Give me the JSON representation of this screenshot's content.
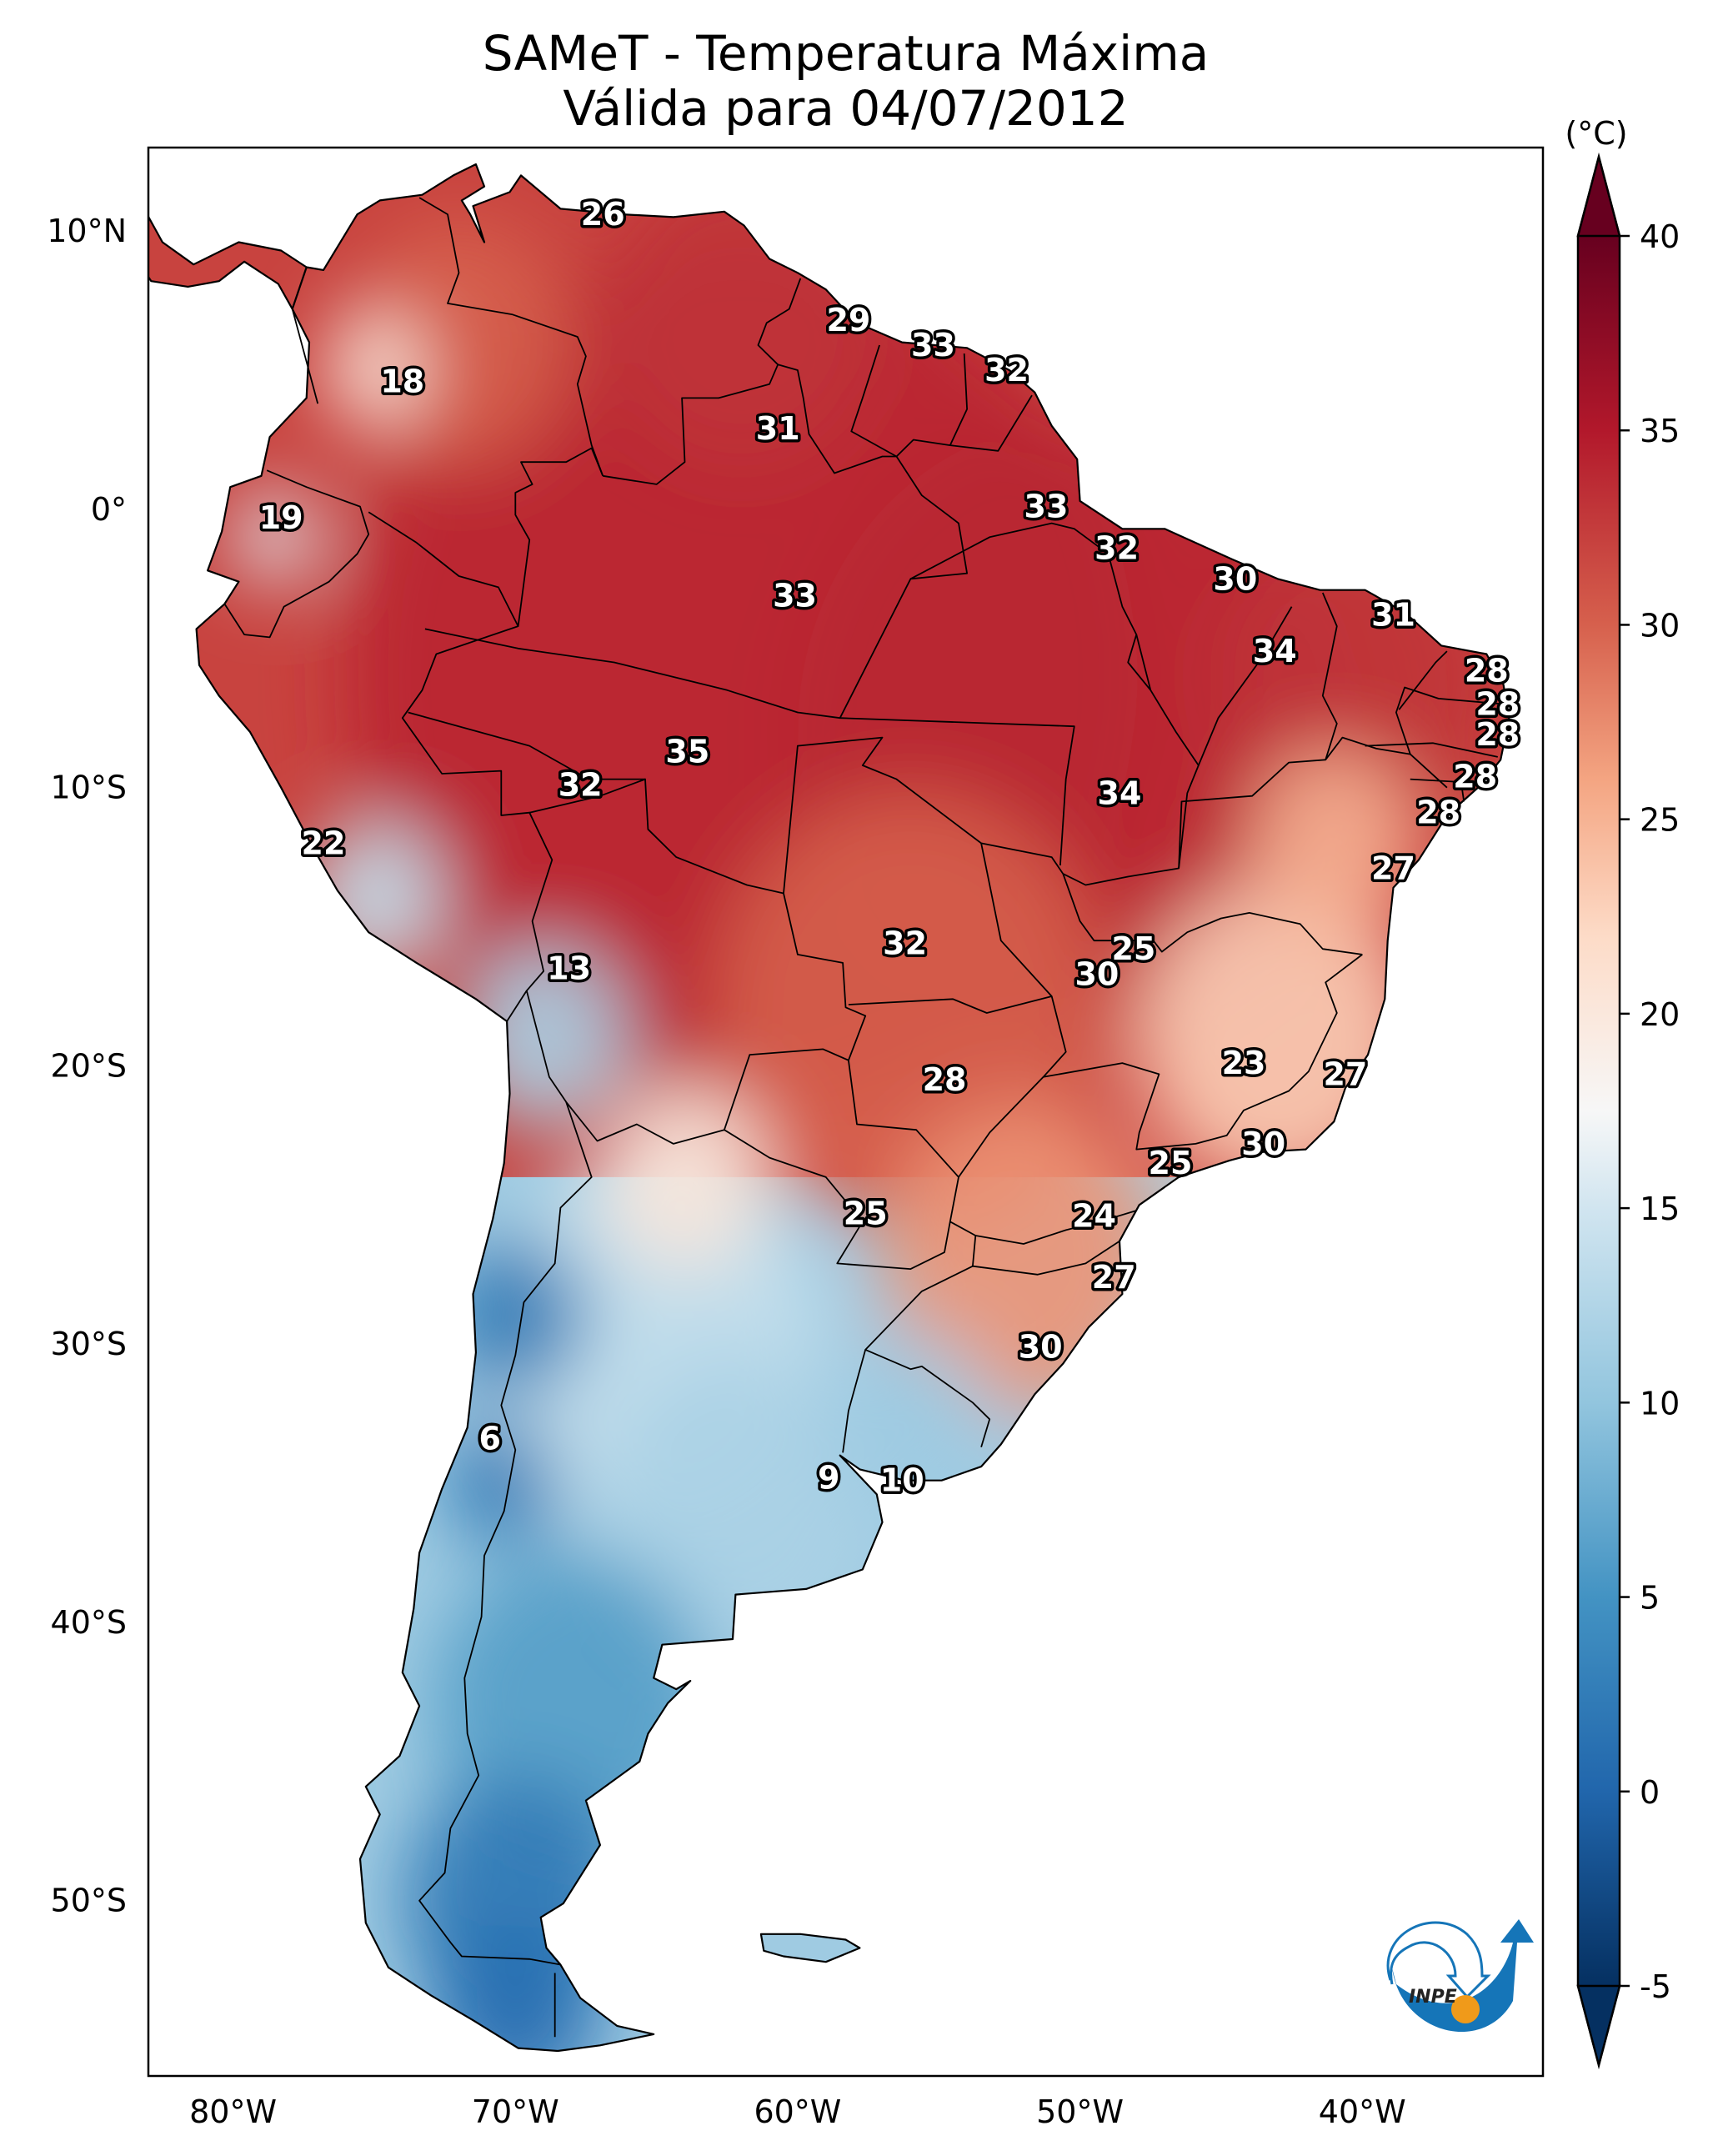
{
  "title": {
    "line1": "SAMeT - Temperatura Máxima",
    "line2": "Válida para 04/07/2012"
  },
  "logo": {
    "text": "INPE",
    "name": "inpe-logo",
    "colors": {
      "blue": "#1575b8",
      "orange": "#f09a1a"
    }
  },
  "chart_data": {
    "type": "heatmap",
    "title": "SAMeT - Temperatura Máxima — Válida para 04/07/2012",
    "variable": "Maximum temperature",
    "units_label": "(°C)",
    "colormap": "RdBu_r",
    "colorbar": {
      "min": -5,
      "max": 40,
      "extend": "both",
      "ticks": [
        -5,
        0,
        5,
        10,
        15,
        20,
        25,
        30,
        35,
        40
      ],
      "tick_labels": [
        "-5",
        "0",
        "5",
        "10",
        "15",
        "20",
        "25",
        "30",
        "35",
        "40"
      ],
      "stops": [
        {
          "value": -5,
          "color": "#053061"
        },
        {
          "value": 0,
          "color": "#2166ac"
        },
        {
          "value": 5,
          "color": "#4393c3"
        },
        {
          "value": 10,
          "color": "#92c5de"
        },
        {
          "value": 15,
          "color": "#d1e5f0"
        },
        {
          "value": 17.5,
          "color": "#f7f7f7"
        },
        {
          "value": 22,
          "color": "#fddbc7"
        },
        {
          "value": 26,
          "color": "#f4a582"
        },
        {
          "value": 30,
          "color": "#d6604d"
        },
        {
          "value": 35,
          "color": "#b2182b"
        },
        {
          "value": 40,
          "color": "#67001f"
        }
      ]
    },
    "x_axis": {
      "range": [
        -83,
        -33.6
      ],
      "ticks": [
        -80,
        -70,
        -60,
        -50,
        -40
      ],
      "tick_labels": [
        "80°W",
        "70°W",
        "60°W",
        "50°W",
        "40°W"
      ]
    },
    "y_axis": {
      "range": [
        -56.3,
        13
      ],
      "ticks": [
        10,
        0,
        -10,
        -20,
        -30,
        -40,
        -50
      ],
      "tick_labels": [
        "10°N",
        "0°",
        "10°S",
        "20°S",
        "30°S",
        "40°S",
        "50°S"
      ]
    },
    "grid": false,
    "station_labels": [
      {
        "value": "26",
        "lon": -66.9,
        "lat": 10.6
      },
      {
        "value": "29",
        "lon": -58.2,
        "lat": 6.8
      },
      {
        "value": "33",
        "lon": -55.2,
        "lat": 5.9
      },
      {
        "value": "32",
        "lon": -52.6,
        "lat": 5.0
      },
      {
        "value": "18",
        "lon": -74.0,
        "lat": 4.6
      },
      {
        "value": "31",
        "lon": -60.7,
        "lat": 2.9
      },
      {
        "value": "19",
        "lon": -78.3,
        "lat": -0.3
      },
      {
        "value": "33",
        "lon": -51.2,
        "lat": 0.1
      },
      {
        "value": "32",
        "lon": -48.7,
        "lat": -1.4
      },
      {
        "value": "30",
        "lon": -44.5,
        "lat": -2.5
      },
      {
        "value": "33",
        "lon": -60.1,
        "lat": -3.1
      },
      {
        "value": "31",
        "lon": -38.9,
        "lat": -3.8
      },
      {
        "value": "34",
        "lon": -43.1,
        "lat": -5.1
      },
      {
        "value": "28",
        "lon": -35.6,
        "lat": -5.8
      },
      {
        "value": "28",
        "lon": -35.2,
        "lat": -7.0
      },
      {
        "value": "28",
        "lon": -35.2,
        "lat": -8.1
      },
      {
        "value": "35",
        "lon": -63.9,
        "lat": -8.7
      },
      {
        "value": "28",
        "lon": -36.0,
        "lat": -9.6
      },
      {
        "value": "32",
        "lon": -67.7,
        "lat": -9.9
      },
      {
        "value": "34",
        "lon": -48.6,
        "lat": -10.2
      },
      {
        "value": "28",
        "lon": -37.3,
        "lat": -10.9
      },
      {
        "value": "22",
        "lon": -76.8,
        "lat": -12.0
      },
      {
        "value": "27",
        "lon": -38.9,
        "lat": -12.9
      },
      {
        "value": "32",
        "lon": -56.2,
        "lat": -15.6
      },
      {
        "value": "25",
        "lon": -48.1,
        "lat": -15.8
      },
      {
        "value": "13",
        "lon": -68.1,
        "lat": -16.5
      },
      {
        "value": "30",
        "lon": -49.4,
        "lat": -16.7
      },
      {
        "value": "23",
        "lon": -44.2,
        "lat": -19.9
      },
      {
        "value": "28",
        "lon": -54.8,
        "lat": -20.5
      },
      {
        "value": "27",
        "lon": -40.6,
        "lat": -20.3
      },
      {
        "value": "30",
        "lon": -43.5,
        "lat": -22.8
      },
      {
        "value": "25",
        "lon": -46.8,
        "lat": -23.5
      },
      {
        "value": "25",
        "lon": -57.6,
        "lat": -25.3
      },
      {
        "value": "24",
        "lon": -49.5,
        "lat": -25.4
      },
      {
        "value": "27",
        "lon": -48.8,
        "lat": -27.6
      },
      {
        "value": "30",
        "lon": -51.4,
        "lat": -30.1
      },
      {
        "value": "6",
        "lon": -70.9,
        "lat": -33.4
      },
      {
        "value": "9",
        "lon": -58.9,
        "lat": -34.8
      },
      {
        "value": "10",
        "lon": -56.3,
        "lat": -34.9
      }
    ],
    "field_blobs": [
      {
        "lon": -62,
        "lat": -6,
        "value": 34,
        "r": 14
      },
      {
        "lon": -50,
        "lat": -8,
        "value": 34,
        "r": 10
      },
      {
        "lon": -40,
        "lat": -6,
        "value": 33,
        "r": 5
      },
      {
        "lon": -62,
        "lat": 7,
        "value": 33,
        "r": 5
      },
      {
        "lon": -72,
        "lat": 6,
        "value": 30,
        "r": 4
      },
      {
        "lon": -56,
        "lat": -18,
        "value": 30,
        "r": 7
      },
      {
        "lon": -43,
        "lat": -19,
        "value": 23,
        "r": 5
      },
      {
        "lon": -41,
        "lat": -12,
        "value": 25,
        "r": 3
      },
      {
        "lon": -52,
        "lat": -27,
        "value": 27,
        "r": 5
      },
      {
        "lon": -75,
        "lat": -14,
        "value": 14,
        "r": 2.5
      },
      {
        "lon": -69,
        "lat": -19,
        "value": 12,
        "r": 3
      },
      {
        "lon": -78.5,
        "lat": -1,
        "value": 16,
        "r": 1.5
      },
      {
        "lon": -75,
        "lat": 5,
        "value": 20,
        "r": 1.8
      },
      {
        "lon": -65,
        "lat": -30,
        "value": 14,
        "r": 6
      },
      {
        "lon": -70,
        "lat": -29,
        "value": 2,
        "r": 2.5
      },
      {
        "lon": -70.5,
        "lat": -35,
        "value": 2,
        "r": 2
      },
      {
        "lon": -62,
        "lat": -36,
        "value": 12,
        "r": 5
      },
      {
        "lon": -56,
        "lat": -33,
        "value": 11,
        "r": 3
      },
      {
        "lon": -68,
        "lat": -43,
        "value": 6,
        "r": 5
      },
      {
        "lon": -70,
        "lat": -50,
        "value": 2,
        "r": 4
      },
      {
        "lon": -70,
        "lat": -54,
        "value": 1,
        "r": 3
      },
      {
        "lon": -64,
        "lat": -24,
        "value": 20,
        "r": 3
      }
    ]
  }
}
